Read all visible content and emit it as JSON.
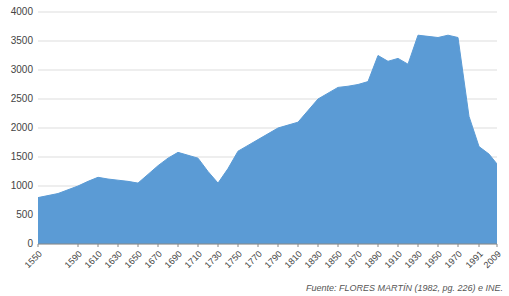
{
  "chart_data": {
    "type": "area",
    "x": [
      1550,
      1570,
      1590,
      1600,
      1610,
      1620,
      1630,
      1640,
      1650,
      1660,
      1670,
      1680,
      1690,
      1700,
      1710,
      1720,
      1730,
      1740,
      1750,
      1760,
      1770,
      1780,
      1790,
      1800,
      1810,
      1820,
      1830,
      1840,
      1850,
      1860,
      1870,
      1880,
      1890,
      1900,
      1910,
      1920,
      1930,
      1940,
      1950,
      1960,
      1970,
      1981,
      1991,
      2001,
      2009
    ],
    "values": [
      800,
      870,
      1000,
      1080,
      1150,
      1120,
      1100,
      1080,
      1050,
      1200,
      1350,
      1480,
      1580,
      1530,
      1480,
      1250,
      1050,
      1300,
      1600,
      1700,
      1800,
      1900,
      2000,
      2050,
      2100,
      2300,
      2500,
      2600,
      2700,
      2720,
      2750,
      2800,
      3250,
      3150,
      3200,
      3100,
      3600,
      3580,
      3560,
      3600,
      3560,
      2200,
      1680,
      1550,
      1380
    ],
    "color": "#5b9bd5",
    "xlim": [
      1550,
      2009
    ],
    "xticks": [
      1550,
      1590,
      1610,
      1630,
      1650,
      1670,
      1690,
      1710,
      1730,
      1750,
      1770,
      1790,
      1810,
      1830,
      1850,
      1870,
      1890,
      1910,
      1930,
      1950,
      1970,
      1991,
      2009
    ],
    "ylim": [
      0,
      4000
    ],
    "yticks": [
      0,
      500,
      1000,
      1500,
      2000,
      2500,
      3000,
      3500,
      4000
    ],
    "grid": true,
    "annotations": [
      "Fuente: FLORES MARTÍN (1982, pg. 226) e INE."
    ]
  }
}
